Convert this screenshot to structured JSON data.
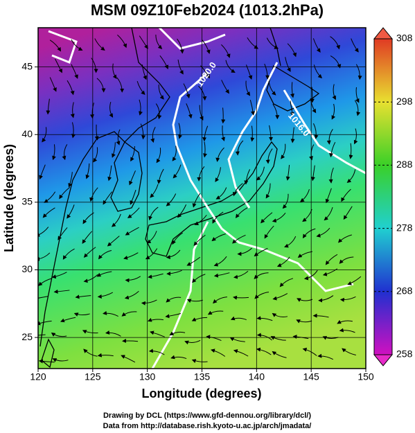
{
  "title": "MSM 09Z10Feb2024 (1013.2hPa)",
  "x_axis": {
    "label": "Longitude (degrees)",
    "lim": [
      120,
      150
    ],
    "ticks": [
      120,
      125,
      130,
      135,
      140,
      145,
      150
    ]
  },
  "y_axis": {
    "label": "Latitude  (degrees)",
    "lim": [
      22.7,
      47.9
    ],
    "ticks": [
      25,
      30,
      35,
      40,
      45
    ]
  },
  "colorbar": {
    "lim": [
      258,
      308
    ],
    "ticks": [
      258,
      268,
      278,
      288,
      298,
      308
    ]
  },
  "contour_labels": [
    "1020.0",
    "1016.0"
  ],
  "credits": [
    "Drawing by DCL (https://www.gfd-dennou.org/library/dcl/)",
    "Data from http://database.rish.kyoto-u.ac.jp/arch/jmadata/"
  ]
}
